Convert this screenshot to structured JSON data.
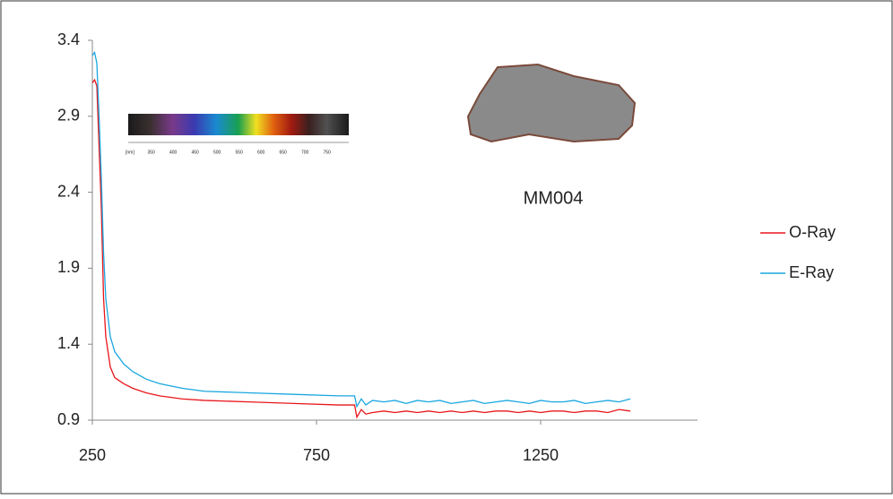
{
  "chart_data": {
    "type": "line",
    "x": [
      250,
      255,
      260,
      265,
      270,
      275,
      280,
      290,
      300,
      320,
      340,
      370,
      400,
      450,
      500,
      600,
      700,
      800,
      835,
      840,
      850,
      860,
      875,
      900,
      925,
      950,
      975,
      1000,
      1025,
      1050,
      1075,
      1100,
      1125,
      1150,
      1175,
      1200,
      1225,
      1250,
      1275,
      1300,
      1325,
      1350,
      1375,
      1400,
      1425,
      1450
    ],
    "series": [
      {
        "name": "O-Ray",
        "color": "#e8161b",
        "values": [
          3.12,
          3.14,
          3.1,
          2.7,
          2.3,
          1.7,
          1.45,
          1.25,
          1.18,
          1.14,
          1.11,
          1.08,
          1.06,
          1.04,
          1.03,
          1.02,
          1.01,
          1.0,
          1.0,
          0.92,
          0.97,
          0.94,
          0.95,
          0.96,
          0.95,
          0.96,
          0.95,
          0.96,
          0.95,
          0.96,
          0.95,
          0.96,
          0.95,
          0.96,
          0.96,
          0.95,
          0.96,
          0.95,
          0.96,
          0.96,
          0.95,
          0.96,
          0.96,
          0.95,
          0.97,
          0.96
        ]
      },
      {
        "name": "E-Ray",
        "color": "#1aa7e0",
        "values": [
          3.3,
          3.32,
          3.25,
          2.9,
          2.5,
          2.0,
          1.7,
          1.45,
          1.35,
          1.27,
          1.22,
          1.17,
          1.14,
          1.11,
          1.09,
          1.08,
          1.07,
          1.06,
          1.06,
          0.99,
          1.04,
          1.0,
          1.03,
          1.02,
          1.03,
          1.01,
          1.03,
          1.02,
          1.03,
          1.01,
          1.02,
          1.03,
          1.01,
          1.02,
          1.03,
          1.02,
          1.01,
          1.03,
          1.02,
          1.02,
          1.03,
          1.01,
          1.02,
          1.03,
          1.02,
          1.04
        ]
      }
    ],
    "xlim": [
      250,
      1600
    ],
    "xticks": [
      250,
      750,
      1250
    ],
    "ylim": [
      0.9,
      3.4
    ],
    "yticks": [
      0.9,
      1.4,
      1.9,
      2.4,
      2.9,
      3.4
    ],
    "annotation": "MM004",
    "spectrum_labels": [
      "[nm]",
      "350",
      "400",
      "450",
      "500",
      "550",
      "600",
      "650",
      "700",
      "750"
    ],
    "legend": "right"
  }
}
